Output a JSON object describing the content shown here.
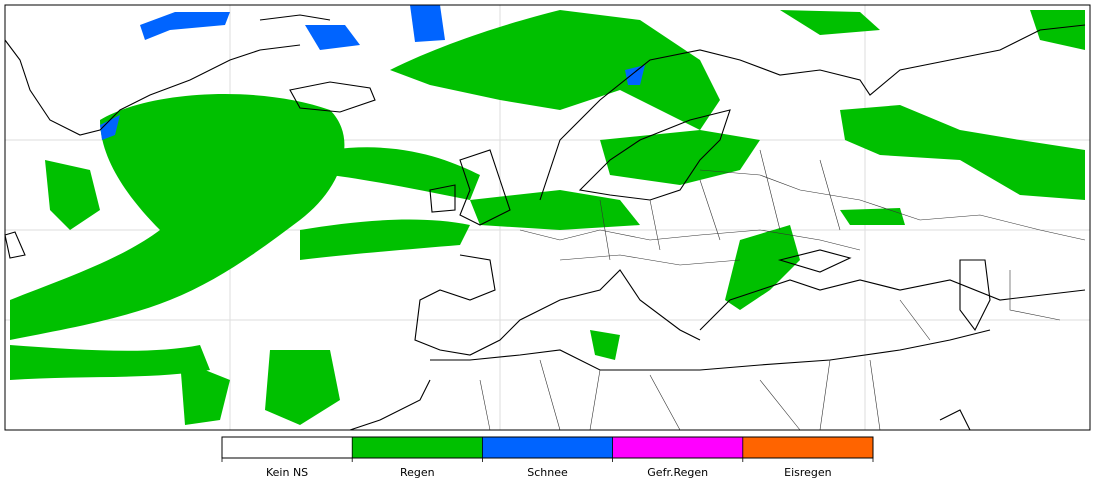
{
  "legend": {
    "items": [
      {
        "label": "Kein NS",
        "color": "#ffffff"
      },
      {
        "label": "Regen",
        "color": "#00c000"
      },
      {
        "label": "Schnee",
        "color": "#0064ff"
      },
      {
        "label": "Gefr.Regen",
        "color": "#ff00ff"
      },
      {
        "label": "Eisregen",
        "color": "#ff6400"
      }
    ]
  }
}
